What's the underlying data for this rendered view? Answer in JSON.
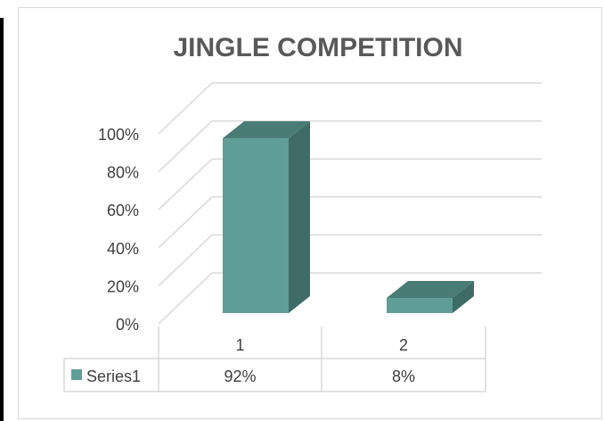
{
  "chart_data": {
    "type": "bar",
    "title": "JINGLE COMPETITION",
    "categories": [
      "1",
      "2"
    ],
    "series": [
      {
        "name": "Series1",
        "values": [
          0.92,
          0.08
        ],
        "labels": [
          "92%",
          "8%"
        ]
      }
    ],
    "ylim": [
      0,
      1
    ],
    "yticks": [
      "0%",
      "20%",
      "40%",
      "60%",
      "80%",
      "100%"
    ],
    "grid": true,
    "legend": "data-table",
    "colors": {
      "front": "#5f9e97",
      "side": "#3e6b66",
      "top": "#4a7c76",
      "grid": "#d9d9d9"
    }
  }
}
